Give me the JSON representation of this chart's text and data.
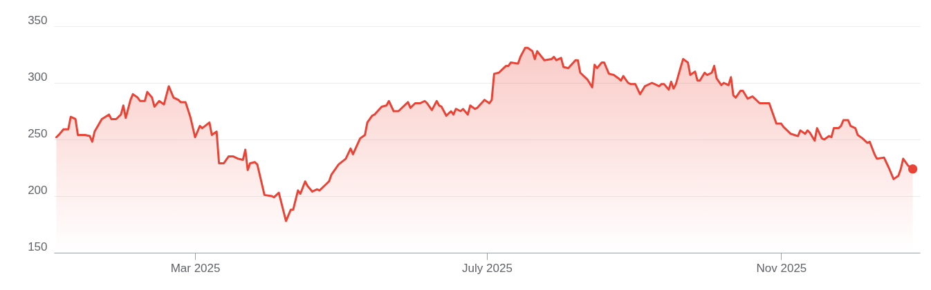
{
  "chart_data": {
    "type": "area",
    "color": "#ea4335",
    "grid": "y",
    "xlim": [
      "2025-01-01",
      "2025-12-29"
    ],
    "ylim": [
      150,
      350
    ],
    "yticks": [
      150,
      200,
      250,
      300,
      350
    ],
    "xticks": [
      {
        "value": "2025-03-01",
        "label": "Mar 2025"
      },
      {
        "value": "2025-07-01",
        "label": "July 2025"
      },
      {
        "value": "2025-11-01",
        "label": "Nov 2025"
      }
    ],
    "x": [
      "2025-01-02",
      "2025-01-03",
      "2025-01-05",
      "2025-01-07",
      "2025-01-08",
      "2025-01-10",
      "2025-01-11",
      "2025-01-14",
      "2025-01-16",
      "2025-01-17",
      "2025-01-18",
      "2025-01-21",
      "2025-01-24",
      "2025-01-25",
      "2025-01-27",
      "2025-01-29",
      "2025-01-30",
      "2025-01-31",
      "2025-02-02",
      "2025-02-03",
      "2025-02-05",
      "2025-02-06",
      "2025-02-08",
      "2025-02-09",
      "2025-02-11",
      "2025-02-12",
      "2025-02-14",
      "2025-02-16",
      "2025-02-18",
      "2025-02-20",
      "2025-02-22",
      "2025-02-23",
      "2025-02-25",
      "2025-02-27",
      "2025-03-01",
      "2025-03-03",
      "2025-03-04",
      "2025-03-07",
      "2025-03-08",
      "2025-03-10",
      "2025-03-11",
      "2025-03-13",
      "2025-03-15",
      "2025-03-17",
      "2025-03-19",
      "2025-03-21",
      "2025-03-22",
      "2025-03-23",
      "2025-03-24",
      "2025-03-26",
      "2025-03-27",
      "2025-03-29",
      "2025-03-30",
      "2025-04-02",
      "2025-04-03",
      "2025-04-05",
      "2025-04-08",
      "2025-04-10",
      "2025-04-11",
      "2025-04-13",
      "2025-04-14",
      "2025-04-16",
      "2025-04-17",
      "2025-04-19",
      "2025-04-21",
      "2025-04-22",
      "2025-04-24",
      "2025-04-26",
      "2025-04-27",
      "2025-04-30",
      "2025-05-03",
      "2025-05-05",
      "2025-05-06",
      "2025-05-09",
      "2025-05-11",
      "2025-05-12",
      "2025-05-14",
      "2025-05-15",
      "2025-05-18",
      "2025-05-20",
      "2025-05-21",
      "2025-05-23",
      "2025-05-25",
      "2025-05-29",
      "2025-05-30",
      "2025-06-01",
      "2025-06-03",
      "2025-06-05",
      "2025-06-06",
      "2025-06-08",
      "2025-06-10",
      "2025-06-11",
      "2025-06-12",
      "2025-06-14",
      "2025-06-16",
      "2025-06-17",
      "2025-06-18",
      "2025-06-20",
      "2025-06-21",
      "2025-06-23",
      "2025-06-24",
      "2025-06-26",
      "2025-06-27",
      "2025-06-30",
      "2025-07-02",
      "2025-07-03",
      "2025-07-04",
      "2025-07-06",
      "2025-07-07",
      "2025-07-09",
      "2025-07-10",
      "2025-07-11",
      "2025-07-14",
      "2025-07-15",
      "2025-07-17",
      "2025-07-18",
      "2025-07-20",
      "2025-07-21",
      "2025-07-22",
      "2025-07-25",
      "2025-07-28",
      "2025-07-29",
      "2025-07-30",
      "2025-08-01",
      "2025-08-02",
      "2025-08-04",
      "2025-08-07",
      "2025-08-08",
      "2025-08-09",
      "2025-08-11",
      "2025-08-12",
      "2025-08-14",
      "2025-08-15",
      "2025-08-16",
      "2025-08-18",
      "2025-08-19",
      "2025-08-21",
      "2025-08-23",
      "2025-08-25",
      "2025-08-26",
      "2025-08-27",
      "2025-08-29",
      "2025-08-30",
      "2025-09-01",
      "2025-09-03",
      "2025-09-05",
      "2025-09-08",
      "2025-09-11",
      "2025-09-12",
      "2025-09-13",
      "2025-09-15",
      "2025-09-16",
      "2025-09-17",
      "2025-09-18",
      "2025-09-20",
      "2025-09-21",
      "2025-09-23",
      "2025-09-24",
      "2025-09-26",
      "2025-09-27",
      "2025-09-28",
      "2025-09-30",
      "2025-10-01",
      "2025-10-03",
      "2025-10-04",
      "2025-10-05",
      "2025-10-07",
      "2025-10-08",
      "2025-10-10",
      "2025-10-11",
      "2025-10-12",
      "2025-10-13",
      "2025-10-15",
      "2025-10-16",
      "2025-10-18",
      "2025-10-20",
      "2025-10-23",
      "2025-10-27",
      "2025-10-29",
      "2025-10-30",
      "2025-11-01",
      "2025-11-02",
      "2025-11-05",
      "2025-11-08",
      "2025-11-09",
      "2025-11-11",
      "2025-11-12",
      "2025-11-13",
      "2025-11-15",
      "2025-11-16",
      "2025-11-18",
      "2025-11-19",
      "2025-11-21",
      "2025-11-22",
      "2025-11-23",
      "2025-11-25",
      "2025-11-26",
      "2025-11-27",
      "2025-11-29",
      "2025-11-30",
      "2025-12-02",
      "2025-12-03",
      "2025-12-05",
      "2025-12-07",
      "2025-12-08",
      "2025-12-10",
      "2025-12-11",
      "2025-12-14",
      "2025-12-16",
      "2025-12-18",
      "2025-12-20",
      "2025-12-21",
      "2025-12-22",
      "2025-12-24",
      "2025-12-26"
    ],
    "values": [
      252,
      254,
      259,
      259,
      270,
      268,
      254,
      254,
      253,
      248,
      257,
      268,
      272,
      268,
      268,
      272,
      280,
      269,
      285,
      290,
      287,
      284,
      284,
      292,
      287,
      279,
      284,
      281,
      297,
      287,
      285,
      283,
      283,
      270,
      252,
      262,
      260,
      265,
      254,
      257,
      229,
      229,
      235,
      235,
      233,
      232,
      241,
      223,
      229,
      230,
      228,
      210,
      201,
      200,
      199,
      203,
      178,
      188,
      188,
      205,
      202,
      213,
      209,
      204,
      206,
      205,
      209,
      213,
      219,
      228,
      233,
      242,
      237,
      251,
      254,
      265,
      271,
      272,
      279,
      280,
      284,
      275,
      275,
      283,
      278,
      282,
      282,
      284,
      282,
      276,
      284,
      280,
      279,
      271,
      275,
      272,
      277,
      275,
      277,
      272,
      280,
      277,
      278,
      285,
      282,
      285,
      308,
      309,
      311,
      315,
      315,
      318,
      317,
      323,
      331,
      331,
      328,
      321,
      328,
      320,
      321,
      323,
      320,
      322,
      314,
      313,
      320,
      320,
      309,
      305,
      303,
      296,
      316,
      313,
      318,
      318,
      308,
      307,
      304,
      302,
      306,
      300,
      299,
      299,
      290,
      297,
      300,
      297,
      299,
      299,
      294,
      301,
      295,
      299,
      314,
      321,
      318,
      307,
      310,
      302,
      302,
      309,
      307,
      309,
      315,
      304,
      298,
      300,
      298,
      305,
      289,
      287,
      293,
      293,
      286,
      288,
      282,
      282,
      270,
      264,
      264,
      261,
      255,
      253,
      258,
      255,
      258,
      256,
      249,
      260,
      251,
      250,
      253,
      252,
      260,
      260,
      262,
      267,
      267,
      262,
      260,
      254,
      251,
      247,
      248,
      237,
      233,
      234,
      225,
      215,
      218,
      224,
      233,
      227,
      224
    ]
  }
}
